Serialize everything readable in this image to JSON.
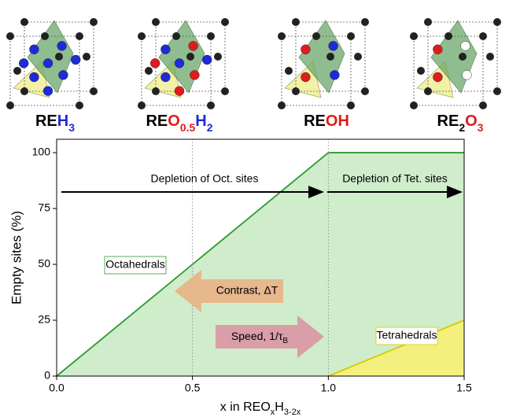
{
  "chart_data": {
    "type": "area",
    "compounds": [
      [
        {
          "text": "RE",
          "color": "#000000"
        },
        {
          "text": "H",
          "color": "#1f2ad8"
        },
        {
          "text": "3",
          "color": "#1f2ad8",
          "sub": true
        }
      ],
      [
        {
          "text": "RE",
          "color": "#000000"
        },
        {
          "text": "O",
          "color": "#e01b1b"
        },
        {
          "text": "0.5",
          "color": "#e01b1b",
          "sub": true
        },
        {
          "text": "H",
          "color": "#1f2ad8"
        },
        {
          "text": "2",
          "color": "#1f2ad8",
          "sub": true
        }
      ],
      [
        {
          "text": "RE",
          "color": "#000000"
        },
        {
          "text": "OH",
          "color": "#e01b1b"
        }
      ],
      [
        {
          "text": "RE",
          "color": "#000000"
        },
        {
          "text": "2",
          "color": "#000000",
          "sub": true
        },
        {
          "text": "O",
          "color": "#e01b1b"
        },
        {
          "text": "3",
          "color": "#e01b1b",
          "sub": true
        }
      ]
    ],
    "y_label": "Empty sites (%)",
    "x_label": [
      {
        "text": "x in REO"
      },
      {
        "text": "x",
        "sub": true
      },
      {
        "text": "H"
      },
      {
        "text": "3-2x",
        "sub": true
      }
    ],
    "annotations": {
      "oct_depletion": "Depletion of Oct. sites",
      "tet_depletion": "Depletion of Tet. sites",
      "contrast": "Contrast, ΔT",
      "speed": [
        {
          "text": "Speed, 1/τ"
        },
        {
          "text": "B",
          "sub": true
        }
      ]
    },
    "series": [
      {
        "name": "Octahedrals",
        "color": "#2e9a2e",
        "fill": "#cfeccb",
        "x": [
          0,
          1,
          1.5
        ],
        "values": [
          0,
          100,
          100
        ]
      },
      {
        "name": "Tetrahedrals",
        "color": "#d8c800",
        "fill": "#f3f07e",
        "x": [
          1,
          1.5
        ],
        "values": [
          0,
          25
        ]
      }
    ],
    "xlim": [
      0,
      1.5
    ],
    "xticks": [
      {
        "value": 0,
        "label": "0.0"
      },
      0.5,
      {
        "value": 1,
        "label": "1.0"
      },
      1.5
    ],
    "ylim": [
      0,
      106
    ],
    "yticks": [
      0,
      25,
      50,
      75,
      100
    ]
  }
}
